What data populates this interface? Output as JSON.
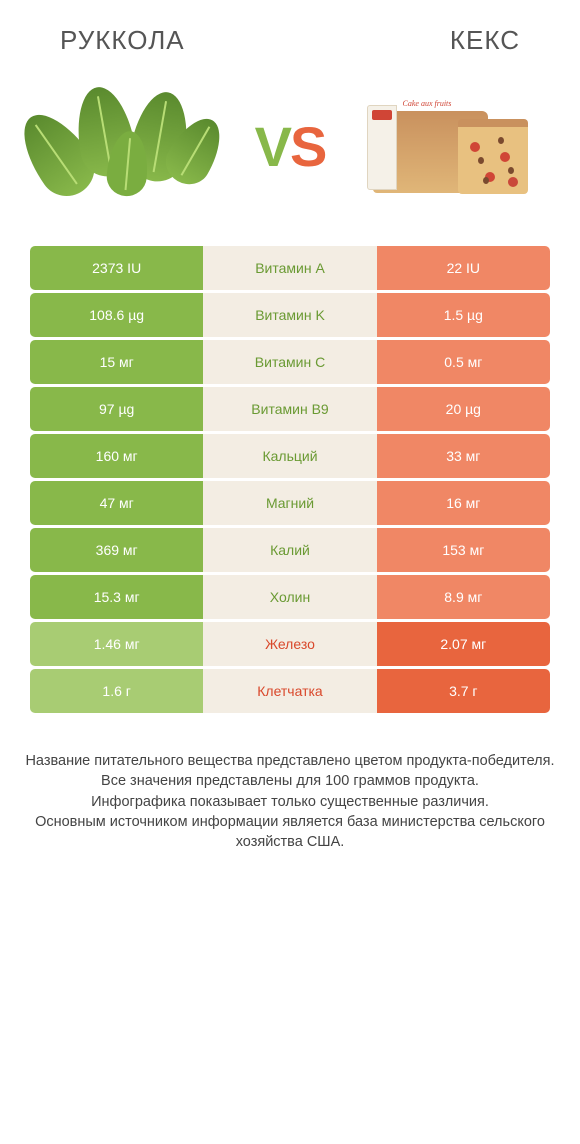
{
  "left_title": "РУККОЛА",
  "right_title": "КЕКС",
  "vs": {
    "v": "V",
    "s": "S"
  },
  "cake_label": "Cake aux fruits",
  "colors": {
    "left_winner": "#88b84a",
    "left_loser": "#a8cc73",
    "right_winner": "#e8653e",
    "right_loser": "#f08765",
    "mid_bg": "#f3ede3",
    "mid_text_left": "#6a9a33",
    "mid_text_right": "#d9482b"
  },
  "rows": [
    {
      "left": "2373 IU",
      "label": "Витамин A",
      "right": "22 IU",
      "winner": "left"
    },
    {
      "left": "108.6 µg",
      "label": "Витамин K",
      "right": "1.5 µg",
      "winner": "left"
    },
    {
      "left": "15 мг",
      "label": "Витамин C",
      "right": "0.5 мг",
      "winner": "left"
    },
    {
      "left": "97 µg",
      "label": "Витамин B9",
      "right": "20 µg",
      "winner": "left"
    },
    {
      "left": "160 мг",
      "label": "Кальций",
      "right": "33 мг",
      "winner": "left"
    },
    {
      "left": "47 мг",
      "label": "Магний",
      "right": "16 мг",
      "winner": "left"
    },
    {
      "left": "369 мг",
      "label": "Калий",
      "right": "153 мг",
      "winner": "left"
    },
    {
      "left": "15.3 мг",
      "label": "Холин",
      "right": "8.9 мг",
      "winner": "left"
    },
    {
      "left": "1.46 мг",
      "label": "Железо",
      "right": "2.07 мг",
      "winner": "right"
    },
    {
      "left": "1.6 г",
      "label": "Клетчатка",
      "right": "3.7 г",
      "winner": "right"
    }
  ],
  "footnote": "Название питательного вещества представлено цветом продукта-победителя.\nВсе значения представлены для 100 граммов продукта.\nИнфографика показывает только существенные различия.\nОсновным источником информации является база министерства сельского хозяйства США."
}
